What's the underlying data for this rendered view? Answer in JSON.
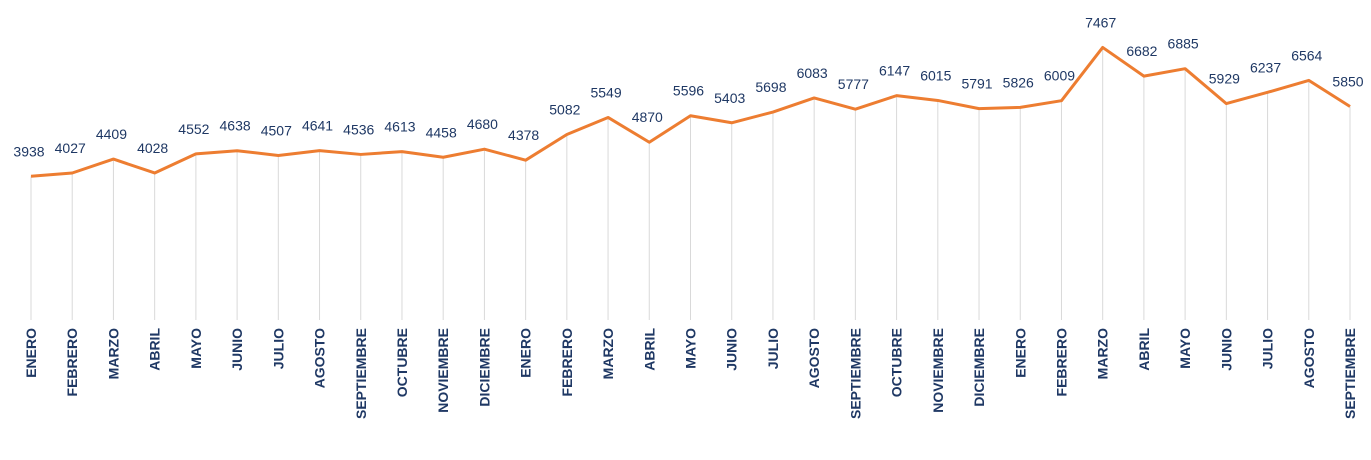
{
  "chart_data": {
    "type": "line",
    "categories": [
      "ENERO",
      "FEBRERO",
      "MARZO",
      "ABRIL",
      "MAYO",
      "JUNIO",
      "JULIO",
      "AGOSTO",
      "SEPTIEMBRE",
      "OCTUBRE",
      "NOVIEMBRE",
      "DICIEMBRE",
      "ENERO",
      "FEBRERO",
      "MARZO",
      "ABRIL",
      "MAYO",
      "JUNIO",
      "JULIO",
      "AGOSTO",
      "SEPTIEMBRE",
      "OCTUBRE",
      "NOVIEMBRE",
      "DICIEMBRE",
      "ENERO",
      "FEBRERO",
      "MARZO",
      "ABRIL",
      "MAYO",
      "JUNIO",
      "JULIO",
      "AGOSTO",
      "SEPTIEMBRE"
    ],
    "values": [
      3938,
      4027,
      4409,
      4028,
      4552,
      4638,
      4507,
      4641,
      4536,
      4613,
      4458,
      4680,
      4378,
      5082,
      5549,
      4870,
      5596,
      5403,
      5698,
      6083,
      5777,
      6147,
      6015,
      5791,
      5826,
      6009,
      7467,
      6682,
      6885,
      5929,
      6237,
      6564,
      5850
    ],
    "color": "#ed7d31",
    "ylim": [
      0,
      8000
    ]
  }
}
